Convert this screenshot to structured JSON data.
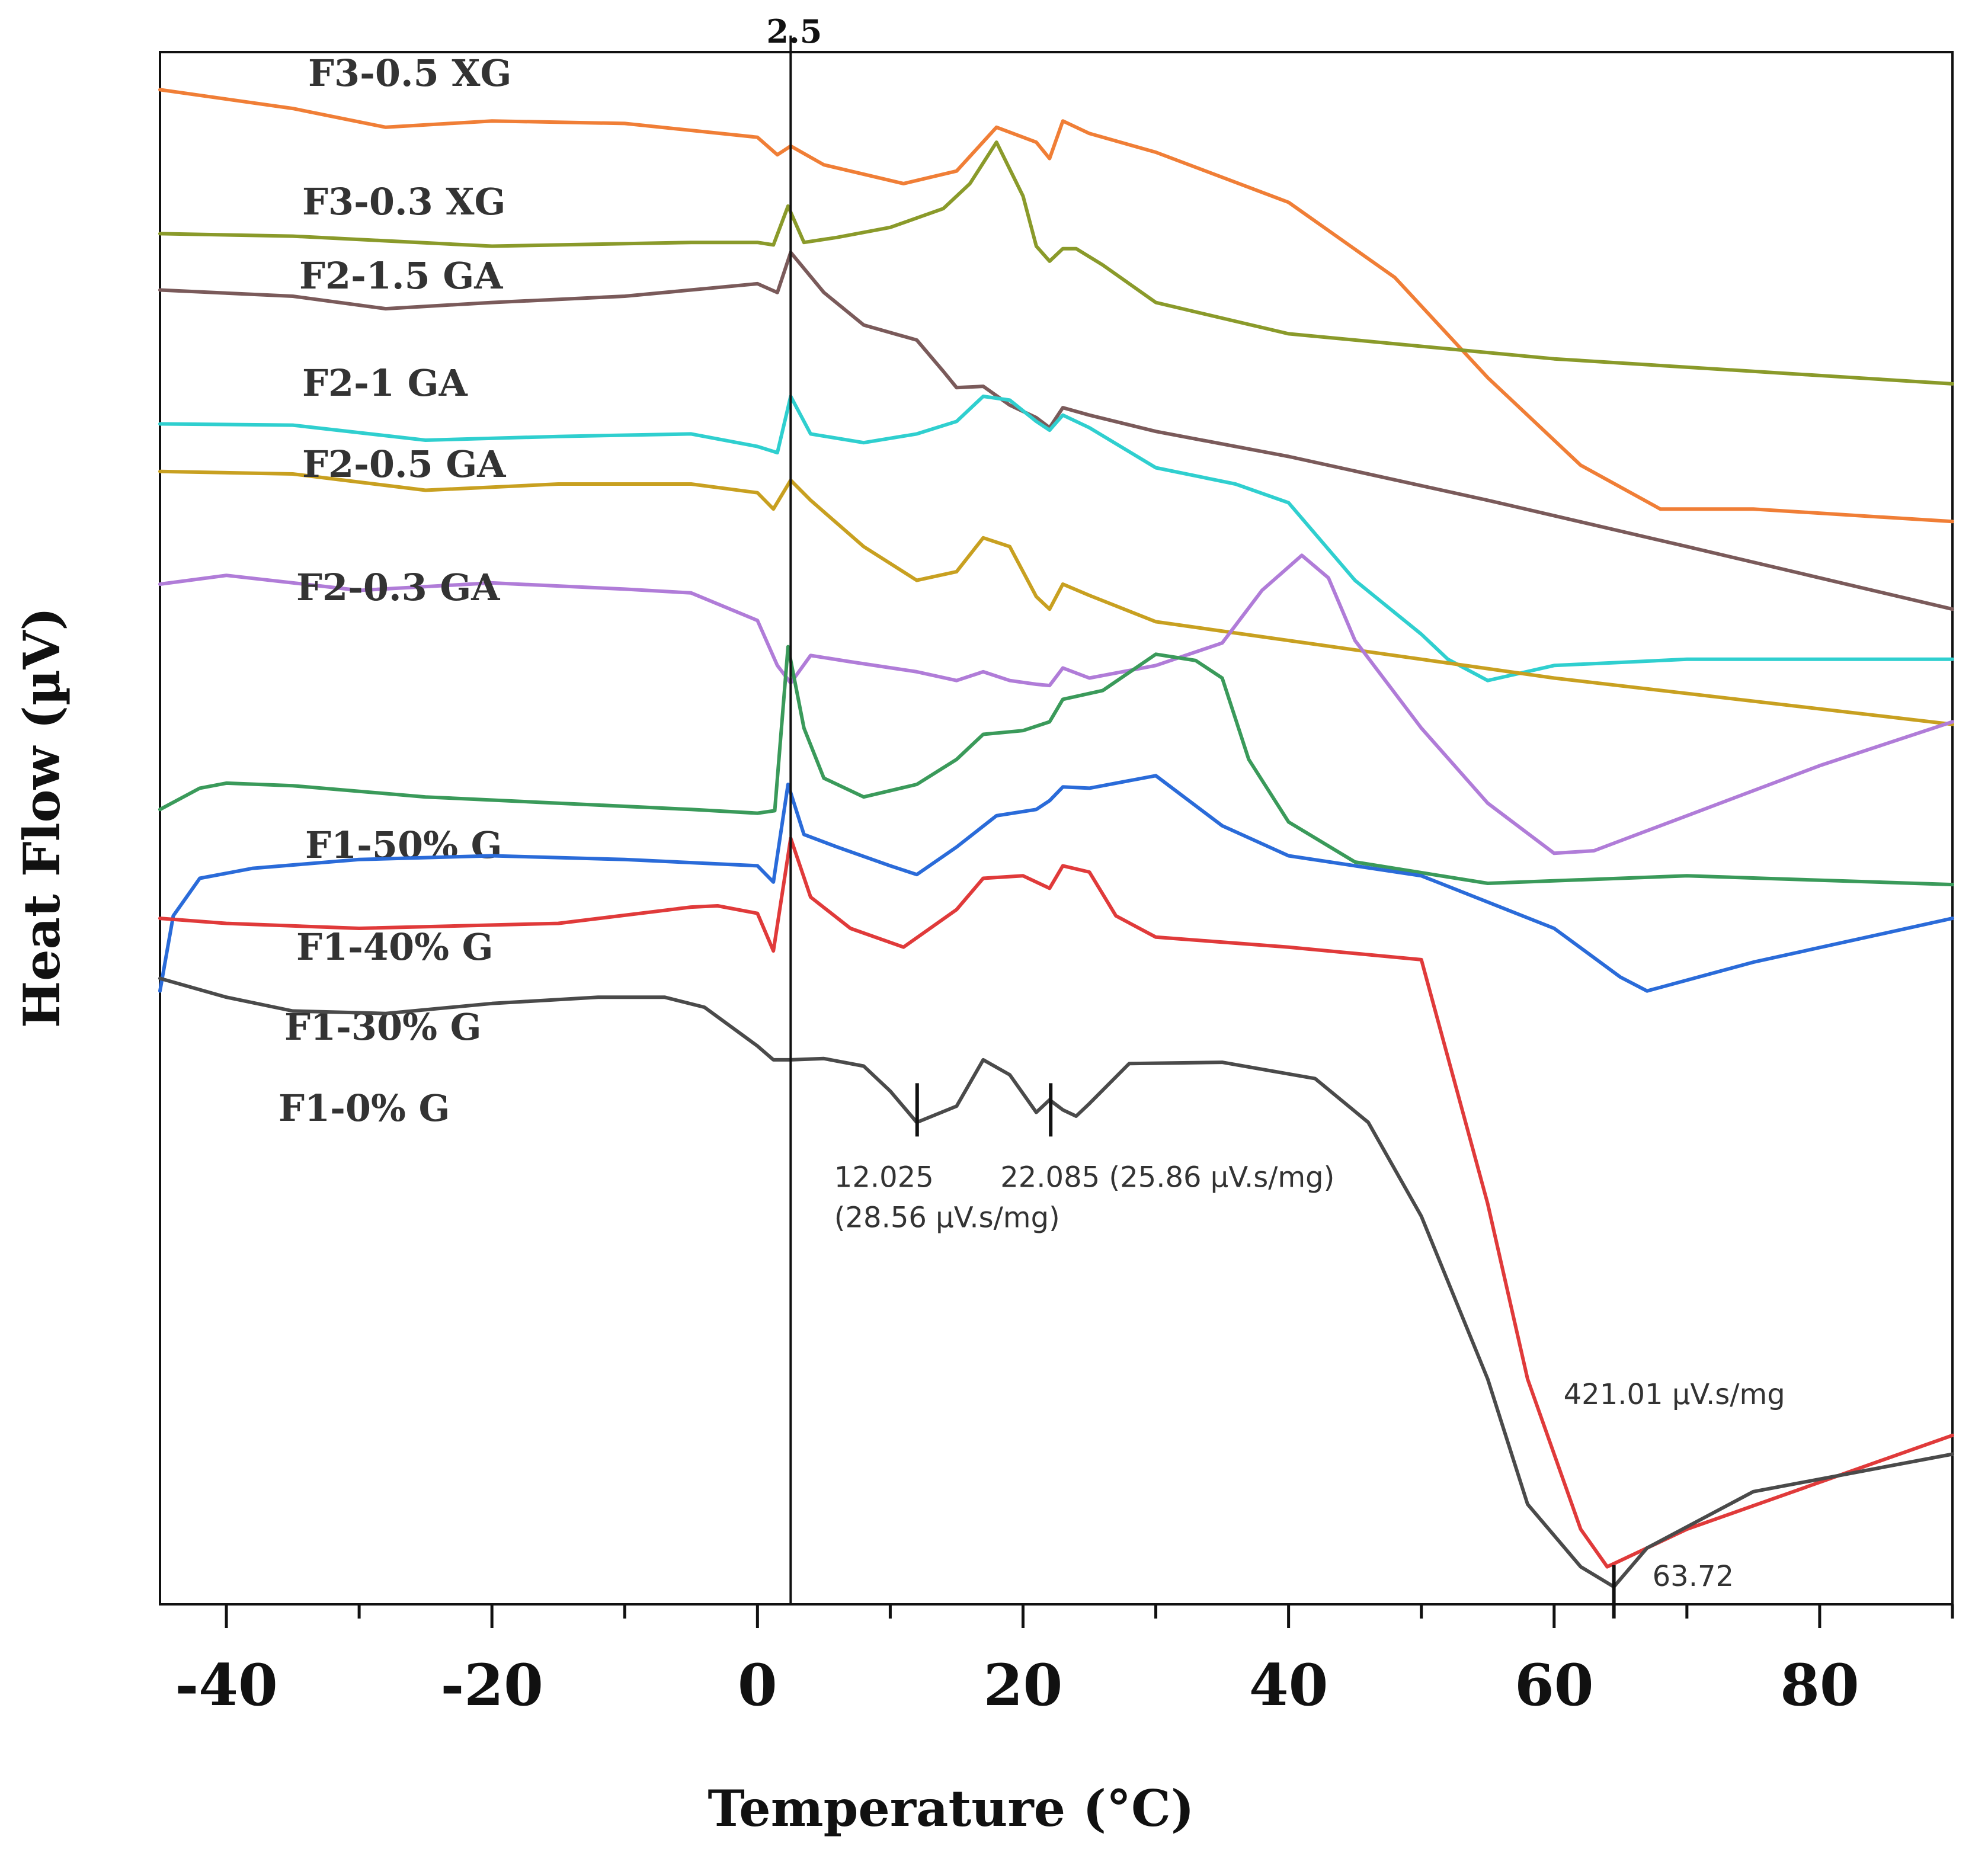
{
  "chart_data": {
    "type": "line",
    "title": "",
    "xlabel": "Temperature (°C)",
    "ylabel": "Heat Flow (µV)",
    "xlim": [
      -45,
      90
    ],
    "ylim": [
      -30,
      94
    ],
    "xticks": [
      -40,
      -20,
      0,
      20,
      40,
      60,
      80
    ],
    "grid": false,
    "legend": "inline labels at left",
    "reference_line": {
      "x": 2.5,
      "label": "2.5"
    },
    "series": [
      {
        "name": "F3-0.5 XG",
        "color": "#f07e36",
        "x": [
          -45,
          -35,
          -28,
          -20,
          -10,
          0,
          1.5,
          2.5,
          5,
          11,
          15,
          18,
          21,
          22,
          23,
          25,
          30,
          40,
          48,
          55,
          62,
          68,
          75,
          90
        ],
        "y": [
          91,
          89.5,
          88,
          88.5,
          88.3,
          87.2,
          85.8,
          86.5,
          85,
          83.5,
          84.5,
          88,
          86.8,
          85.5,
          88.5,
          87.5,
          86,
          82,
          76,
          68,
          61,
          57.5,
          57.5,
          56.5
        ]
      },
      {
        "name": "F3-0.3 XG",
        "color": "#8a9a2a",
        "x": [
          -45,
          -35,
          -20,
          -5,
          0,
          1.2,
          2.3,
          3.5,
          6,
          10,
          14,
          16,
          18,
          20,
          21,
          22,
          23,
          24,
          26,
          30,
          40,
          60,
          90
        ],
        "y": [
          79.5,
          79.3,
          78.5,
          78.8,
          78.8,
          78.6,
          81.7,
          78.8,
          79.2,
          80,
          81.5,
          83.5,
          86.8,
          82.5,
          78.5,
          77.3,
          78.3,
          78.3,
          77,
          74,
          71.5,
          69.5,
          67.5
        ]
      },
      {
        "name": "F2-1.5 GA",
        "color": "#7a5a5a",
        "x": [
          -45,
          -35,
          -28,
          -20,
          -10,
          0,
          1.5,
          2.5,
          5,
          8,
          12,
          14,
          15,
          17,
          19,
          21,
          22,
          23,
          25,
          30,
          40,
          55,
          70,
          90
        ],
        "y": [
          75,
          74.5,
          73.5,
          74,
          74.5,
          75.5,
          74.8,
          78,
          74.8,
          72.2,
          71,
          68.5,
          67.2,
          67.3,
          65.8,
          64.8,
          64,
          65.6,
          65,
          63.7,
          61.7,
          58.2,
          54.5,
          49.5
        ]
      },
      {
        "name": "F2-1 GA",
        "color": "#2fcfcf",
        "x": [
          -45,
          -35,
          -25,
          -15,
          -5,
          0,
          1.5,
          2.5,
          4,
          8,
          12,
          15,
          17,
          19,
          21,
          22,
          23,
          25,
          30,
          36,
          40,
          45,
          50,
          52,
          55,
          60,
          70,
          90
        ],
        "y": [
          64.3,
          64.2,
          63,
          63.3,
          63.5,
          62.5,
          62,
          66.5,
          63.5,
          62.8,
          63.5,
          64.5,
          66.5,
          66.2,
          64.5,
          63.8,
          65,
          64,
          60.8,
          59.5,
          58,
          51.8,
          47.5,
          45.5,
          43.8,
          45,
          45.5,
          45.5
        ]
      },
      {
        "name": "F2-0.5 GA",
        "color": "#c8a020",
        "x": [
          -45,
          -35,
          -25,
          -15,
          -5,
          0,
          1.2,
          2.5,
          4,
          8,
          12,
          15,
          17,
          19,
          21,
          22,
          23,
          25,
          30,
          40,
          60,
          90
        ],
        "y": [
          60.5,
          60.3,
          59,
          59.5,
          59.5,
          58.8,
          57.5,
          59.8,
          58.2,
          54.5,
          51.8,
          52.5,
          55.2,
          54.5,
          50.5,
          49.5,
          51.5,
          50.6,
          48.5,
          47,
          44,
          40.3
        ]
      },
      {
        "name": "F2-0.3 GA",
        "color": "#b07cd8",
        "x": [
          -45,
          -40,
          -30,
          -20,
          -10,
          -5,
          0,
          1.5,
          2.5,
          4,
          7,
          12,
          15,
          17,
          19,
          21,
          22,
          23,
          25,
          30,
          35,
          38,
          41,
          43,
          45,
          50,
          55,
          60,
          63,
          70,
          80,
          90
        ],
        "y": [
          51.5,
          52.2,
          51,
          51.6,
          51.1,
          50.8,
          48.6,
          45,
          43.6,
          45.8,
          45.3,
          44.5,
          43.8,
          44.5,
          43.8,
          43.5,
          43.4,
          44.8,
          44,
          45,
          46.8,
          51,
          53.8,
          52,
          47,
          40,
          34,
          30,
          30.2,
          33,
          37,
          40.5
        ]
      },
      {
        "name": "F1-50% G",
        "color": "#3a9a5a",
        "x": [
          -45,
          -42,
          -40,
          -35,
          -25,
          -15,
          -5,
          0,
          1.3,
          2.3,
          3.5,
          5,
          8,
          12,
          15,
          17,
          20,
          22,
          23,
          26,
          30,
          33,
          35,
          37,
          40,
          45,
          55,
          70,
          90
        ],
        "y": [
          33.5,
          35.2,
          35.6,
          35.4,
          34.5,
          34,
          33.5,
          33.2,
          33.4,
          46.5,
          40,
          36,
          34.5,
          35.5,
          37.5,
          39.5,
          39.8,
          40.5,
          42.3,
          43,
          45.9,
          45.4,
          44,
          37.5,
          32.5,
          29.3,
          27.6,
          28.2,
          27.5
        ]
      },
      {
        "name": "F1-40% G",
        "color": "#2a6bd9",
        "x": [
          -45,
          -44,
          -42,
          -38,
          -30,
          -20,
          -10,
          0,
          1.2,
          2.3,
          3.5,
          6,
          10,
          12,
          15,
          18,
          21,
          22,
          23,
          25,
          30,
          35,
          40,
          50,
          60,
          65,
          67,
          75,
          90
        ],
        "y": [
          19,
          25,
          28,
          28.8,
          29.5,
          29.8,
          29.5,
          29,
          27.7,
          35.5,
          31.5,
          30.5,
          29,
          28.3,
          30.5,
          33,
          33.5,
          34.2,
          35.3,
          35.2,
          36.2,
          32.2,
          29.8,
          28.2,
          24,
          20.1,
          19,
          21.3,
          24.8
        ]
      },
      {
        "name": "F1-30% G",
        "color": "#e03a3a",
        "x": [
          -45,
          -40,
          -30,
          -15,
          -5,
          -3,
          0,
          1.2,
          2.5,
          4,
          7,
          11,
          15,
          17,
          20,
          22,
          23,
          25,
          27,
          30,
          40,
          50,
          55,
          58,
          62,
          64,
          70,
          90
        ],
        "y": [
          24.8,
          24.4,
          24,
          24.4,
          25.7,
          25.8,
          25.2,
          22.2,
          31.2,
          26.5,
          24,
          22.5,
          25.5,
          28,
          28.2,
          27.2,
          29,
          28.5,
          25,
          23.3,
          22.5,
          21.5,
          2,
          -12,
          -24,
          -27,
          -24,
          -16.5
        ]
      },
      {
        "name": "F1-0% G",
        "color": "#4a4a4a",
        "x": [
          -45,
          -40,
          -35,
          -28,
          -20,
          -12,
          -7,
          -4,
          0,
          1.2,
          2.5,
          5,
          8,
          10,
          12,
          15,
          17,
          19,
          21,
          22,
          23,
          24,
          25,
          28,
          35,
          42,
          46,
          50,
          55,
          58,
          62,
          64.5,
          67,
          75,
          90
        ],
        "y": [
          20,
          18.5,
          17.4,
          17.2,
          18,
          18.5,
          18.5,
          17.7,
          14.6,
          13.5,
          13.5,
          13.6,
          13,
          11,
          8.5,
          9.8,
          13.5,
          12.3,
          9.3,
          10.3,
          9.5,
          9,
          10,
          13.2,
          13.3,
          12,
          8.5,
          1,
          -12,
          -22,
          -27,
          -28.6,
          -25.5,
          -21,
          -18
        ]
      }
    ],
    "annotations": [
      {
        "x": 12.025,
        "y": 9.5,
        "lines": [
          "12.025",
          "(28.56 µV.s/mg)"
        ]
      },
      {
        "x": 22.085,
        "y": 9.5,
        "lines": [
          "22.085 (25.86 µV.s/mg)"
        ]
      },
      {
        "x": 64.5,
        "y": -29,
        "lines": [
          "63.72"
        ]
      },
      {
        "x": 64.5,
        "y": -14,
        "lines": [
          "421.01 µV.s/mg"
        ]
      }
    ]
  }
}
